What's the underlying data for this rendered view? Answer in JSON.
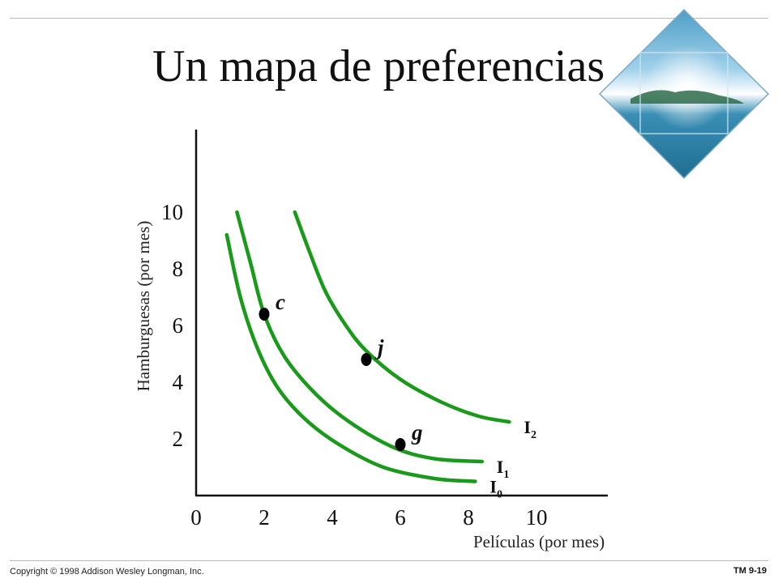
{
  "slide": {
    "title": "Un mapa de preferencias",
    "copyright": "Copyright © 1998 Addison Wesley Longman, Inc.",
    "slide_number": "TM 9-19"
  },
  "logo": {
    "icon": "ocean-island-diamond-icon"
  },
  "chart_data": {
    "type": "line",
    "xlabel": "Películas (por mes)",
    "ylabel": "Hamburguesas (por mes)",
    "xlim": [
      0,
      10
    ],
    "ylim": [
      0,
      10
    ],
    "x_ticks": [
      "0",
      "2",
      "4",
      "6",
      "8",
      "10"
    ],
    "y_ticks": [
      "2",
      "4",
      "6",
      "8",
      "10"
    ],
    "grid": false,
    "color": "#1a9a1a",
    "series": [
      {
        "name": "I0",
        "label_main": "I",
        "label_sub": "0",
        "x": [
          0.9,
          1.3,
          1.8,
          2.4,
          3.2,
          4.2,
          5.5,
          7.0,
          8.2
        ],
        "y": [
          9.2,
          7.0,
          5.2,
          3.8,
          2.7,
          1.8,
          1.0,
          0.6,
          0.5
        ]
      },
      {
        "name": "I1",
        "label_main": "I",
        "label_sub": "1",
        "x": [
          1.2,
          1.6,
          2.0,
          2.6,
          3.5,
          4.5,
          5.8,
          7.0,
          8.4
        ],
        "y": [
          10.0,
          8.2,
          6.4,
          4.9,
          3.6,
          2.6,
          1.7,
          1.3,
          1.2
        ]
      },
      {
        "name": "I2",
        "label_main": "I",
        "label_sub": "2",
        "x": [
          2.9,
          3.3,
          3.8,
          4.4,
          5.0,
          6.0,
          7.2,
          8.3,
          9.2
        ],
        "y": [
          10.0,
          8.7,
          7.2,
          6.0,
          5.1,
          4.1,
          3.3,
          2.8,
          2.6
        ]
      }
    ],
    "points": [
      {
        "label": "c",
        "x": 2.0,
        "y": 6.4
      },
      {
        "label": "j",
        "x": 5.0,
        "y": 4.8
      },
      {
        "label": "g",
        "x": 6.0,
        "y": 1.8
      }
    ]
  }
}
